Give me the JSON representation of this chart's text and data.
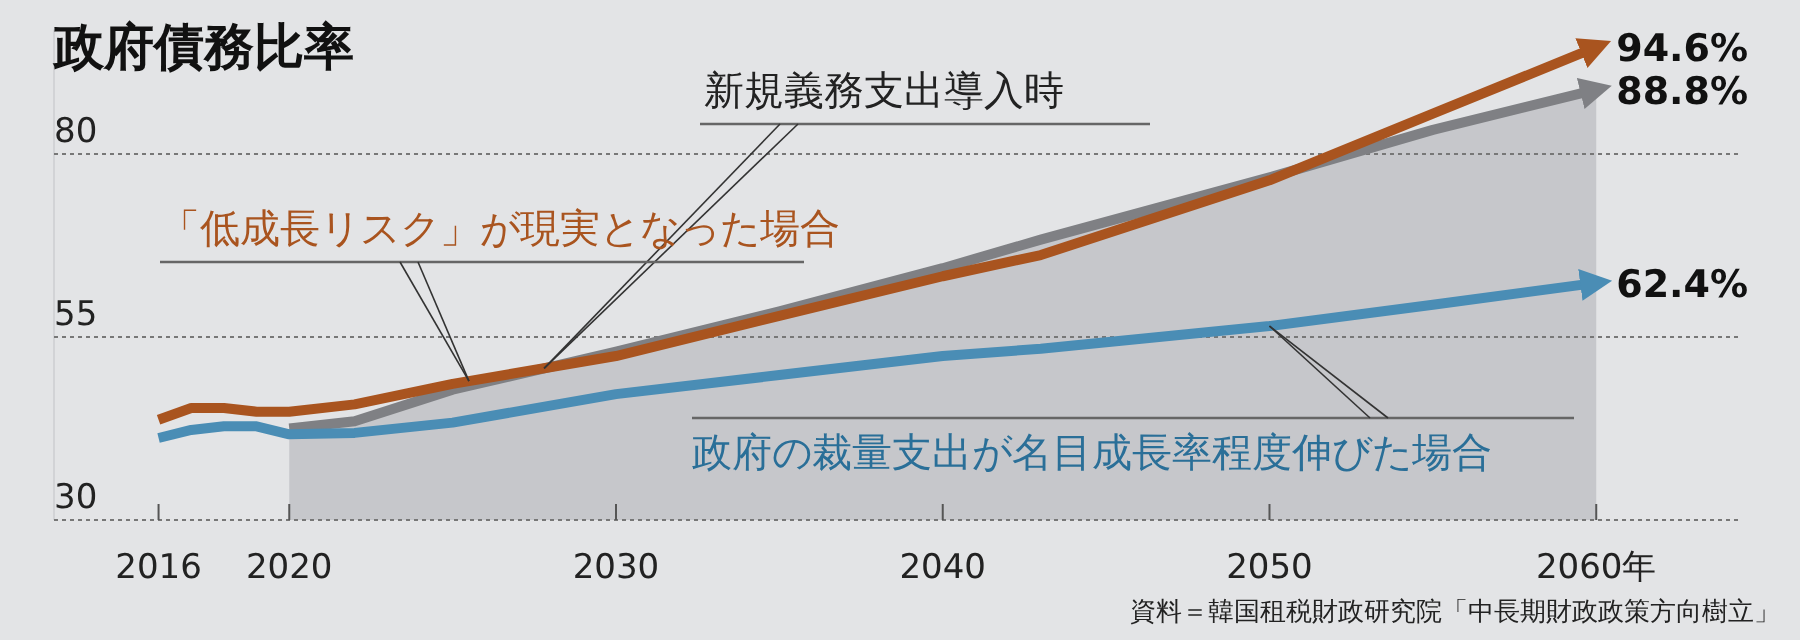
{
  "chart_data": {
    "type": "line",
    "title": "政府債務比率",
    "x": [
      2016,
      2017,
      2018,
      2019,
      2020,
      2022,
      2025,
      2030,
      2035,
      2040,
      2043,
      2050,
      2055,
      2060
    ],
    "xlim": [
      2012.8,
      2064.4
    ],
    "ylim": [
      30,
      97
    ],
    "xticks": [
      2016,
      2020,
      2030,
      2040,
      2050,
      {
        "value": 2060,
        "label": "2060年"
      }
    ],
    "yticks": [
      30,
      55,
      80
    ],
    "grid": "y",
    "legend": false,
    "series": [
      {
        "name": "新規義務支出導入時",
        "type": "area",
        "color": "#7f8084",
        "values": [
          null,
          null,
          null,
          null,
          42.5,
          43.5,
          47.8,
          53,
          58.5,
          64.4,
          68.3,
          76.8,
          83.3,
          88.8
        ],
        "value_labels": [
          null,
          null,
          null,
          null,
          null,
          null,
          null,
          null,
          null,
          null,
          null,
          null,
          null,
          "88.8%"
        ]
      },
      {
        "name": "「低成長リスク」が現実となった場合",
        "color": "#a9541f",
        "values": [
          43.7,
          45.3,
          45.3,
          44.8,
          44.8,
          45.8,
          48.6,
          52.4,
          57.9,
          63.3,
          66.2,
          76.4,
          85.5,
          94.6
        ],
        "value_labels": [
          null,
          null,
          null,
          null,
          null,
          null,
          null,
          null,
          null,
          null,
          null,
          null,
          null,
          "94.6%"
        ]
      },
      {
        "name": "政府の裁量支出が名目成長率程度伸びた場合",
        "color": "#4a8db5",
        "values": [
          41.2,
          42.3,
          42.8,
          42.8,
          41.7,
          41.9,
          43.3,
          47.2,
          49.8,
          52.4,
          53.4,
          56.5,
          59.4,
          62.4
        ],
        "value_labels": [
          null,
          null,
          null,
          null,
          null,
          null,
          null,
          null,
          null,
          null,
          null,
          null,
          null,
          "62.4%"
        ]
      }
    ],
    "annotations": [
      "資料＝韓国租税財政研究院「中長期財政政策方向樹立」"
    ]
  }
}
